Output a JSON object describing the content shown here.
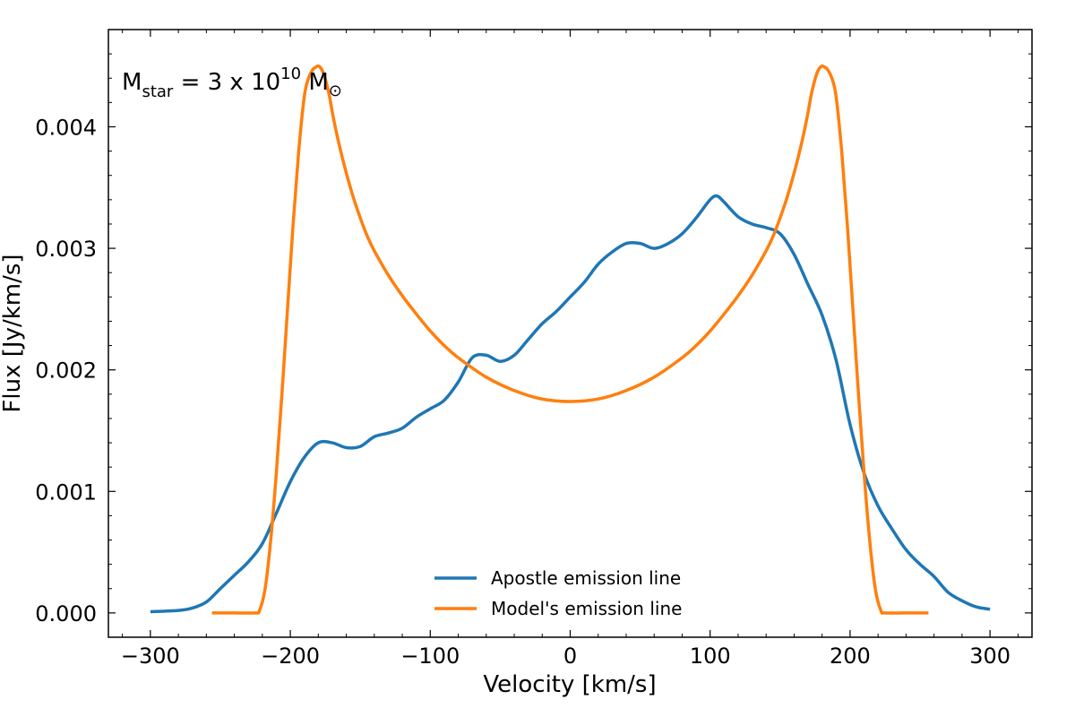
{
  "chart_data": {
    "type": "line",
    "xlabel": "Velocity [km/s]",
    "ylabel": "Flux [Jy/km/s]",
    "xlim": [
      -330,
      330
    ],
    "ylim": [
      -0.0002,
      0.0048
    ],
    "xticks": [
      -300,
      -200,
      -100,
      0,
      100,
      200,
      300
    ],
    "xtick_labels": [
      "−300",
      "−200",
      "−100",
      "0",
      "100",
      "200",
      "300"
    ],
    "yticks": [
      0.0,
      0.001,
      0.002,
      0.003,
      0.004
    ],
    "ytick_labels": [
      "0.000",
      "0.001",
      "0.002",
      "0.003",
      "0.004"
    ],
    "grid": false,
    "legend_position": "bottom-center",
    "annotation": {
      "m": "M",
      "star_sub": "star",
      "eq": " = 3 x 10",
      "exp": "10",
      "m2": " M",
      "sun_sub": "⊙"
    },
    "series": [
      {
        "name": "Apostle emission line",
        "color": "#1f77b4",
        "x": [
          -300,
          -280,
          -270,
          -260,
          -250,
          -240,
          -230,
          -220,
          -210,
          -200,
          -190,
          -180,
          -170,
          -160,
          -150,
          -140,
          -130,
          -120,
          -110,
          -100,
          -90,
          -80,
          -70,
          -60,
          -50,
          -40,
          -30,
          -20,
          -10,
          0,
          10,
          20,
          30,
          40,
          50,
          60,
          70,
          80,
          90,
          100,
          105,
          110,
          120,
          130,
          140,
          150,
          160,
          170,
          180,
          190,
          200,
          210,
          220,
          230,
          240,
          250,
          260,
          270,
          280,
          290,
          300
        ],
        "y": [
          1e-05,
          2e-05,
          4e-05,
          9e-05,
          0.0002,
          0.00031,
          0.00042,
          0.00057,
          0.00082,
          0.00108,
          0.00128,
          0.0014,
          0.0014,
          0.00136,
          0.00137,
          0.00145,
          0.00148,
          0.00152,
          0.00161,
          0.00168,
          0.00175,
          0.0019,
          0.0021,
          0.00212,
          0.00207,
          0.00212,
          0.00225,
          0.00238,
          0.00248,
          0.0026,
          0.00272,
          0.00287,
          0.00297,
          0.00304,
          0.00304,
          0.003,
          0.00304,
          0.00312,
          0.00325,
          0.0034,
          0.00343,
          0.00338,
          0.00326,
          0.0032,
          0.00317,
          0.00312,
          0.00295,
          0.0027,
          0.00245,
          0.00208,
          0.00155,
          0.00115,
          0.00088,
          0.00069,
          0.00052,
          0.0004,
          0.0003,
          0.00017,
          0.0001,
          5e-05,
          3e-05
        ]
      },
      {
        "name": "Model's emission line",
        "color": "#ff7f0e",
        "x": [
          -256,
          -240,
          -225,
          -222,
          -218,
          -214,
          -210,
          -206,
          -202,
          -198,
          -194,
          -190,
          -187,
          -184,
          -182,
          -180,
          -178,
          -176,
          -174,
          -172,
          -170,
          -167,
          -164,
          -160,
          -155,
          -150,
          -145,
          -140,
          -130,
          -120,
          -110,
          -100,
          -90,
          -80,
          -60,
          -40,
          -20,
          0,
          20,
          40,
          60,
          80,
          90,
          100,
          110,
          120,
          130,
          140,
          145,
          150,
          155,
          160,
          164,
          167,
          170,
          172,
          174,
          176,
          178,
          180,
          182,
          184,
          187,
          190,
          194,
          198,
          202,
          206,
          210,
          214,
          218,
          222,
          225,
          240,
          256
        ],
        "y": [
          0.0,
          0.0,
          0.0,
          2e-05,
          0.0002,
          0.0006,
          0.00115,
          0.0018,
          0.0025,
          0.0032,
          0.0038,
          0.00425,
          0.0044,
          0.00447,
          0.00449,
          0.0045,
          0.00448,
          0.00443,
          0.00435,
          0.00425,
          0.00412,
          0.00395,
          0.0038,
          0.00362,
          0.00342,
          0.00325,
          0.0031,
          0.00298,
          0.00278,
          0.00261,
          0.00246,
          0.00232,
          0.0022,
          0.0021,
          0.00194,
          0.00183,
          0.00176,
          0.00174,
          0.00176,
          0.00183,
          0.00194,
          0.0021,
          0.0022,
          0.00232,
          0.00246,
          0.00261,
          0.00278,
          0.00298,
          0.0031,
          0.00325,
          0.00342,
          0.00362,
          0.0038,
          0.00395,
          0.00412,
          0.00425,
          0.00435,
          0.00443,
          0.00448,
          0.0045,
          0.00449,
          0.00447,
          0.0044,
          0.00425,
          0.0038,
          0.0032,
          0.0025,
          0.0018,
          0.00115,
          0.0006,
          0.0002,
          2e-05,
          0.0,
          0.0,
          0.0
        ]
      }
    ]
  }
}
